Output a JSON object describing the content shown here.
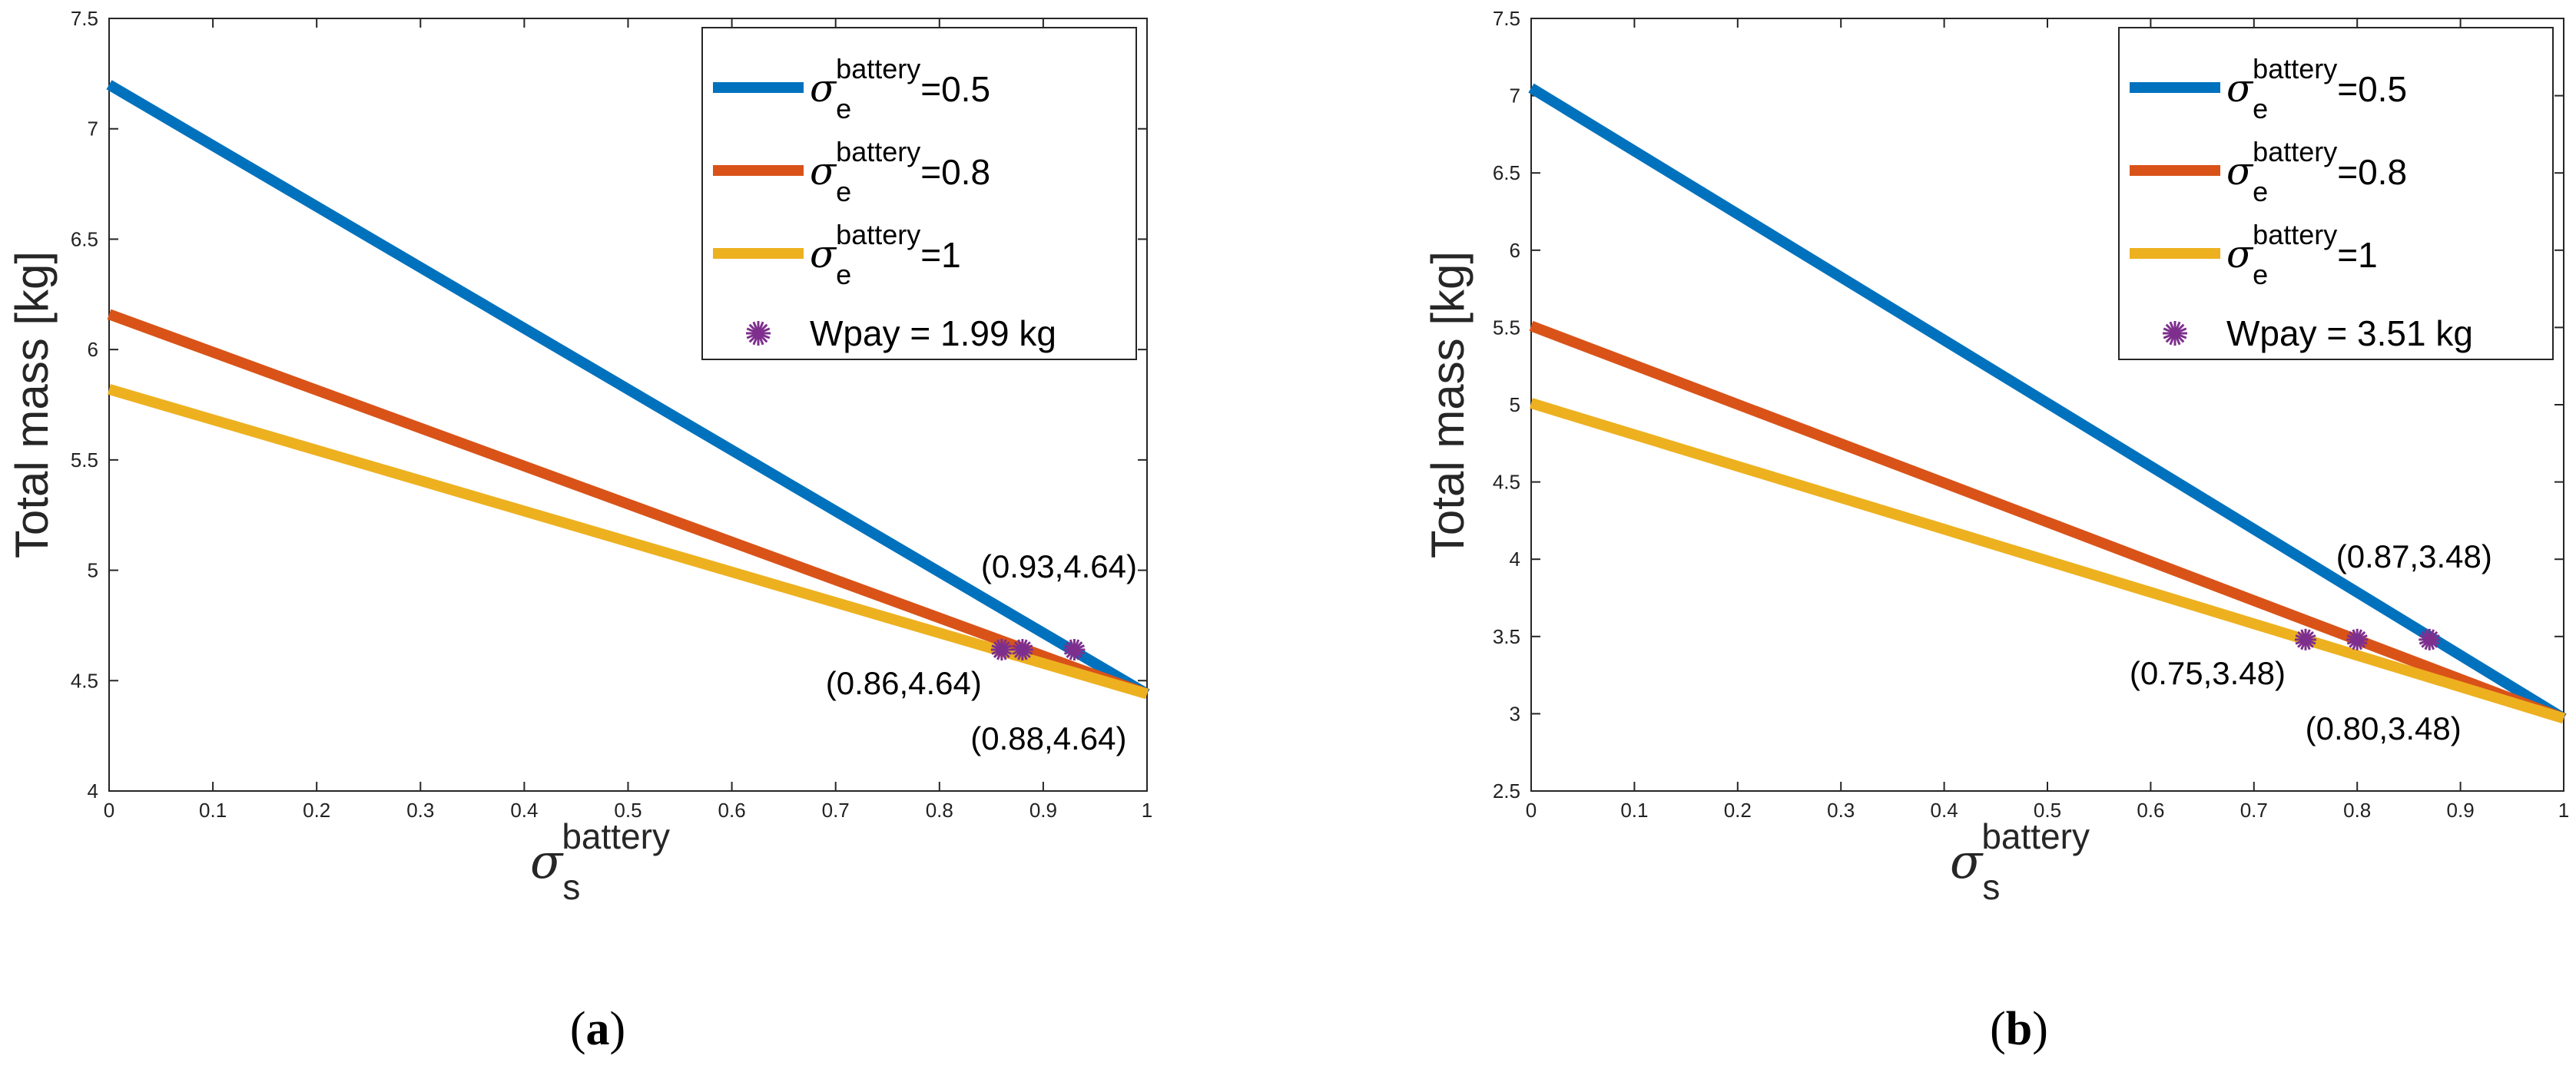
{
  "colors": {
    "blue": "#0072BD",
    "orange": "#D95319",
    "yellow": "#EDB120",
    "marker": "#7E2F8E",
    "axis": "#262626"
  },
  "chart_data": [
    {
      "type": "line",
      "caption_open": "(",
      "caption_letter": "a",
      "caption_close": ")",
      "ylabel": "Total mass [kg]",
      "xlabel": {
        "symbol": "σ",
        "superscript": "battery",
        "subscript": "s"
      },
      "xlim": [
        0,
        1
      ],
      "ylim": [
        4,
        7.5
      ],
      "xticks": [
        "0",
        "0.1",
        "0.2",
        "0.3",
        "0.4",
        "0.5",
        "0.6",
        "0.7",
        "0.8",
        "0.9",
        "1"
      ],
      "yticks": [
        "4",
        "4.5",
        "5",
        "5.5",
        "6",
        "6.5",
        "7",
        "7.5"
      ],
      "series": [
        {
          "legend_symbol": "σ",
          "legend_sup": "battery",
          "legend_sub": "e",
          "legend_value": "=0.5",
          "color": "#0072BD",
          "x": [
            0,
            1
          ],
          "y": [
            7.2,
            4.44
          ]
        },
        {
          "legend_symbol": "σ",
          "legend_sup": "battery",
          "legend_sub": "e",
          "legend_value": "=0.8",
          "color": "#D95319",
          "x": [
            0,
            1
          ],
          "y": [
            6.16,
            4.44
          ]
        },
        {
          "legend_symbol": "σ",
          "legend_sup": "battery",
          "legend_sub": "e",
          "legend_value": "=1",
          "color": "#EDB120",
          "x": [
            0,
            1
          ],
          "y": [
            5.82,
            4.44
          ]
        }
      ],
      "markers": {
        "legend_label": "Wpay = 1.99 kg",
        "color": "#7E2F8E",
        "x": [
          0.86,
          0.88,
          0.93
        ],
        "y": [
          4.64,
          4.64,
          4.64
        ]
      },
      "annotations": [
        {
          "text": "(0.93,4.64)",
          "x": 0.93,
          "y": 4.64,
          "pos": "above"
        },
        {
          "text": "(0.86,4.64)",
          "x": 0.86,
          "y": 4.64,
          "pos": "below-left"
        },
        {
          "text": "(0.88,4.64)",
          "x": 0.88,
          "y": 4.64,
          "pos": "below-right"
        }
      ],
      "legend_location": "top-right"
    },
    {
      "type": "line",
      "caption_open": "(",
      "caption_letter": "b",
      "caption_close": ")",
      "ylabel": "Total mass [kg]",
      "xlabel": {
        "symbol": "σ",
        "superscript": "battery",
        "subscript": "s"
      },
      "xlim": [
        0,
        1
      ],
      "ylim": [
        2.5,
        7.5
      ],
      "xticks": [
        "0",
        "0.1",
        "0.2",
        "0.3",
        "0.4",
        "0.5",
        "0.6",
        "0.7",
        "0.8",
        "0.9",
        "1"
      ],
      "yticks": [
        "2.5",
        "3",
        "3.5",
        "4",
        "4.5",
        "5",
        "5.5",
        "6",
        "6.5",
        "7",
        "7.5"
      ],
      "series": [
        {
          "legend_symbol": "σ",
          "legend_sup": "battery",
          "legend_sub": "e",
          "legend_value": "=0.5",
          "color": "#0072BD",
          "x": [
            0,
            1
          ],
          "y": [
            7.05,
            2.97
          ]
        },
        {
          "legend_symbol": "σ",
          "legend_sup": "battery",
          "legend_sub": "e",
          "legend_value": "=0.8",
          "color": "#D95319",
          "x": [
            0,
            1
          ],
          "y": [
            5.51,
            2.97
          ]
        },
        {
          "legend_symbol": "σ",
          "legend_sup": "battery",
          "legend_sub": "e",
          "legend_value": "=1",
          "color": "#EDB120",
          "x": [
            0,
            1
          ],
          "y": [
            5.01,
            2.97
          ]
        }
      ],
      "markers": {
        "legend_label": "Wpay = 3.51 kg",
        "color": "#7E2F8E",
        "x": [
          0.75,
          0.8,
          0.87
        ],
        "y": [
          3.48,
          3.48,
          3.48
        ]
      },
      "annotations": [
        {
          "text": "(0.87,3.48)",
          "x": 0.87,
          "y": 3.48,
          "pos": "above"
        },
        {
          "text": "(0.75,3.48)",
          "x": 0.75,
          "y": 3.48,
          "pos": "below-left"
        },
        {
          "text": "(0.80,3.48)",
          "x": 0.8,
          "y": 3.48,
          "pos": "below-right"
        }
      ],
      "legend_location": "top-right"
    }
  ]
}
